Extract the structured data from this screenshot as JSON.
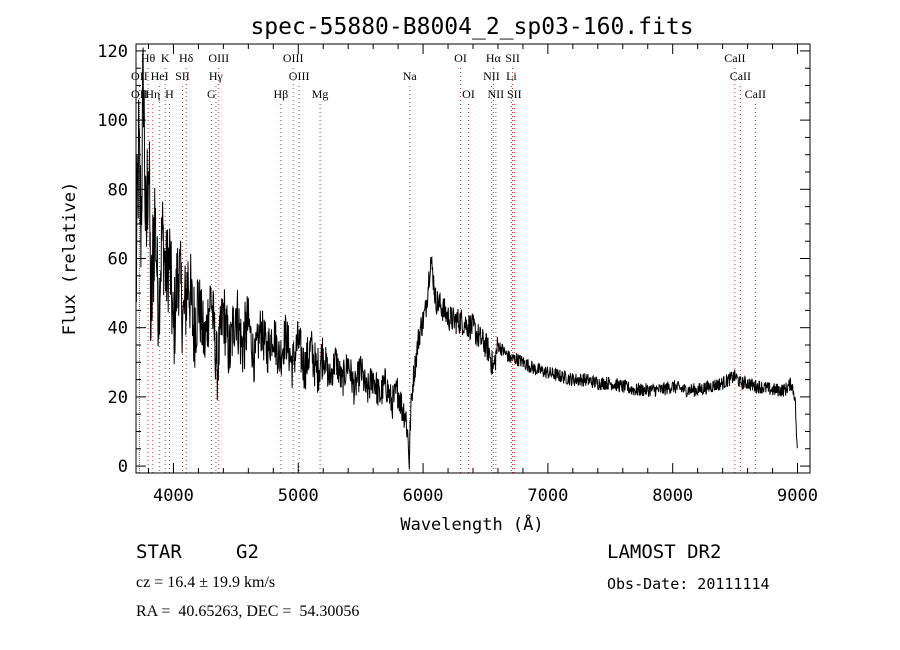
{
  "chart_data": {
    "type": "line",
    "title": "spec-55880-B8004_2_sp03-160.fits",
    "xlabel": "Wavelength (Å)",
    "ylabel": "Flux (relative)",
    "xlim": [
      3700,
      9100
    ],
    "ylim": [
      -2,
      122
    ],
    "xticks": [
      4000,
      5000,
      6000,
      7000,
      8000,
      9000
    ],
    "yticks": [
      0,
      20,
      40,
      60,
      80,
      100,
      120
    ],
    "grid": false,
    "line_color": "#000000",
    "marker_color": "#cc3333",
    "series": [
      {
        "x": [
          3700,
          3720,
          3740,
          3760,
          3780,
          3800,
          3820,
          3850,
          3880,
          3910,
          3940,
          3970,
          4000,
          4040,
          4080,
          4120,
          4160,
          4200,
          4250,
          4300,
          4350,
          4400,
          4450,
          4500,
          4550,
          4600,
          4650,
          4700,
          4750,
          4800,
          4850,
          4900,
          4950,
          5000,
          5050,
          5100,
          5150,
          5200,
          5250,
          5300,
          5350,
          5400,
          5450,
          5500,
          5550,
          5600,
          5650,
          5700,
          5750,
          5800,
          5830,
          5860,
          5880,
          5890,
          5900,
          5920,
          5940,
          5960,
          5980,
          6000,
          6020,
          6040,
          6060,
          6080,
          6100,
          6150,
          6200,
          6250,
          6300,
          6350,
          6400,
          6450,
          6500,
          6530,
          6563,
          6600,
          6650,
          6700,
          6750,
          6800,
          6900,
          7000,
          7100,
          7200,
          7300,
          7400,
          7500,
          7600,
          7700,
          7800,
          7900,
          8000,
          8100,
          8200,
          8300,
          8400,
          8450,
          8500,
          8542,
          8600,
          8662,
          8700,
          8800,
          8900,
          8950,
          8980,
          9000
        ],
        "y": [
          50,
          90,
          70,
          115,
          60,
          95,
          40,
          75,
          45,
          68,
          55,
          60,
          38,
          58,
          42,
          55,
          40,
          48,
          35,
          50,
          28,
          45,
          32,
          46,
          34,
          42,
          30,
          40,
          33,
          39,
          31,
          38,
          29,
          36,
          28,
          34,
          27,
          33,
          25,
          31,
          24,
          30,
          22,
          28,
          21,
          26,
          20,
          24,
          18,
          22,
          17,
          15,
          8,
          1,
          15,
          25,
          30,
          36,
          40,
          42,
          45,
          52,
          60,
          55,
          48,
          46,
          43,
          42,
          42,
          41,
          40,
          37,
          35,
          33,
          28,
          35,
          33,
          31,
          31,
          30,
          28,
          27,
          26,
          25,
          25,
          24,
          24,
          23,
          22,
          22,
          22,
          23,
          22,
          22,
          23,
          24,
          25,
          26,
          24,
          24,
          23,
          23,
          22,
          22,
          24,
          20,
          2
        ]
      }
    ],
    "lines": [
      {
        "label": "Hθ",
        "x": 3797,
        "row": 1
      },
      {
        "label": "K",
        "x": 3934,
        "row": 1
      },
      {
        "label": "Hδ",
        "x": 4102,
        "row": 1
      },
      {
        "label": "OIII",
        "x": 4363,
        "row": 1
      },
      {
        "label": "OIII",
        "x": 4959,
        "row": 1
      },
      {
        "label": "OI",
        "x": 6300,
        "row": 1
      },
      {
        "label": "Hα",
        "x": 6563,
        "row": 1
      },
      {
        "label": "SII",
        "x": 6717,
        "row": 1
      },
      {
        "label": "CaII",
        "x": 8498,
        "row": 1
      },
      {
        "label": "OII",
        "x": 3727,
        "row": 2
      },
      {
        "label": "HeI",
        "x": 3889,
        "row": 2
      },
      {
        "label": "SII",
        "x": 4072,
        "row": 2
      },
      {
        "label": "Hγ",
        "x": 4340,
        "row": 2
      },
      {
        "label": "OIII",
        "x": 5007,
        "row": 2
      },
      {
        "label": "Na",
        "x": 5893,
        "row": 2
      },
      {
        "label": "NII",
        "x": 6548,
        "row": 2
      },
      {
        "label": "Li",
        "x": 6708,
        "row": 2
      },
      {
        "label": "CaII",
        "x": 8542,
        "row": 2
      },
      {
        "label": "OII",
        "x": 3727,
        "row": 3
      },
      {
        "label": "Hη",
        "x": 3835,
        "row": 3
      },
      {
        "label": "H",
        "x": 3968,
        "row": 3
      },
      {
        "label": "G",
        "x": 4304,
        "row": 3
      },
      {
        "label": "Hβ",
        "x": 4861,
        "row": 3
      },
      {
        "label": "Mg",
        "x": 5175,
        "row": 3
      },
      {
        "label": "OI",
        "x": 6364,
        "row": 3
      },
      {
        "label": "NII",
        "x": 6583,
        "row": 3
      },
      {
        "label": "SII",
        "x": 6731,
        "row": 3
      },
      {
        "label": "CaII",
        "x": 8662,
        "row": 3
      }
    ]
  },
  "info": {
    "class": "STAR",
    "subclass": "G2",
    "survey": "LAMOST DR2",
    "cz": "cz = 16.4 ± 19.9 km/s",
    "obs_date": "Obs-Date: 20111114",
    "coords": "RA =  40.65263, DEC =  54.30056"
  }
}
